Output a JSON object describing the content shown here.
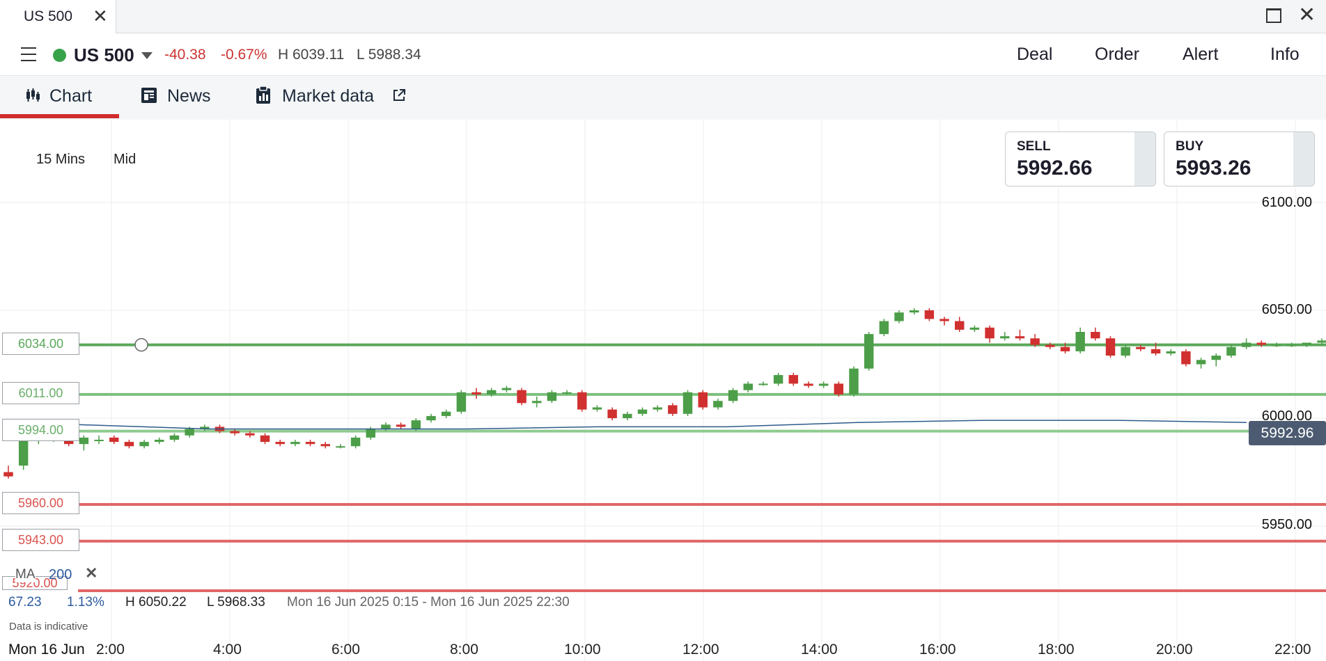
{
  "window": {
    "tab_title": "US 500"
  },
  "header": {
    "instrument": "US 500",
    "change": "-40.38",
    "change_pct": "-0.67%",
    "high": "H 6039.11",
    "low": "L 5988.34",
    "actions": [
      "Deal",
      "Order",
      "Alert",
      "Info"
    ]
  },
  "tabs": [
    {
      "label": "Chart",
      "icon": "candlestick-icon"
    },
    {
      "label": "News",
      "icon": "news-icon"
    },
    {
      "label": "Market data",
      "icon": "clipboard-icon"
    }
  ],
  "toolbar": {
    "timeframe": "15 Mins",
    "price_type": "Mid"
  },
  "quote": {
    "sell_label": "SELL",
    "sell_price": "5992.66",
    "buy_label": "BUY",
    "buy_price": "5993.26"
  },
  "y_axis": [
    "6100.00",
    "6050.00",
    "6000.00",
    "5950.00"
  ],
  "current_price": "5992.96",
  "levels": [
    {
      "label": "6034.00",
      "value": 6034,
      "color": "#5aa85a"
    },
    {
      "label": "6011.00",
      "value": 6011,
      "color": "#7cbf7c"
    },
    {
      "label": "5994.00",
      "value": 5994,
      "color": "#8fca8f"
    },
    {
      "label": "5960.00",
      "value": 5960,
      "color": "#e06666"
    },
    {
      "label": "5943.00",
      "value": 5943,
      "color": "#e06666"
    },
    {
      "label": "5920.00",
      "value": 5920,
      "color": "#e06666"
    }
  ],
  "indicator": {
    "name": "MA",
    "period": "200"
  },
  "stats": {
    "change": "67.23",
    "change_pct": "1.13%",
    "high": "H 6050.22",
    "low": "L 5968.33",
    "range": "Mon 16 Jun 2025 0:15 - Mon 16 Jun 2025 22:30"
  },
  "disclaimer": "Data is indicative",
  "x_axis": [
    "Mon 16 Jun",
    "2:00",
    "4:00",
    "6:00",
    "8:00",
    "10:00",
    "12:00",
    "14:00",
    "16:00",
    "18:00",
    "20:00",
    "22:00"
  ],
  "chart_data": {
    "type": "candlestick",
    "ylim": [
      5930,
      6105
    ],
    "colors": {
      "up": "#4c9e48",
      "down": "#d0302f",
      "ma": "#2c5a8a"
    },
    "ma_values": [
      5997,
      5995,
      5995,
      5995,
      5996,
      5996,
      5998,
      5999,
      5999,
      5998
    ],
    "candles": [
      [
        5975,
        5978,
        5972,
        5973
      ],
      [
        5978,
        5992,
        5976,
        5990
      ],
      [
        5990,
        5993,
        5988,
        5991
      ],
      [
        5991,
        5994,
        5989,
        5992
      ],
      [
        5993,
        5994,
        5987,
        5988
      ],
      [
        5988,
        5992,
        5985,
        5991
      ],
      [
        5990,
        5992,
        5988,
        5990
      ],
      [
        5991,
        5992,
        5988,
        5989
      ],
      [
        5989,
        5990,
        5986,
        5987
      ],
      [
        5987,
        5990,
        5986,
        5989
      ],
      [
        5989,
        5991,
        5988,
        5990
      ],
      [
        5990,
        5993,
        5989,
        5992
      ],
      [
        5992,
        5996,
        5991,
        5995
      ],
      [
        5995,
        5997,
        5994,
        5996
      ],
      [
        5996,
        5997,
        5993,
        5994
      ],
      [
        5994,
        5995,
        5992,
        5993
      ],
      [
        5993,
        5994,
        5991,
        5992
      ],
      [
        5992,
        5993,
        5988,
        5989
      ],
      [
        5989,
        5990,
        5987,
        5988
      ],
      [
        5988,
        5990,
        5987,
        5989
      ],
      [
        5989,
        5990,
        5987,
        5988
      ],
      [
        5988,
        5989,
        5986,
        5987
      ],
      [
        5987,
        5988,
        5986,
        5987
      ],
      [
        5987,
        5992,
        5986,
        5991
      ],
      [
        5991,
        5996,
        5990,
        5995
      ],
      [
        5995,
        5998,
        5994,
        5997
      ],
      [
        5997,
        5998,
        5995,
        5996
      ],
      [
        5995,
        6000,
        5994,
        5999
      ],
      [
        5999,
        6002,
        5998,
        6001
      ],
      [
        6001,
        6004,
        6000,
        6003
      ],
      [
        6003,
        6013,
        6002,
        6012
      ],
      [
        6012,
        6014,
        6009,
        6011
      ],
      [
        6011,
        6014,
        6010,
        6013
      ],
      [
        6013,
        6015,
        6012,
        6014
      ],
      [
        6013,
        6014,
        6006,
        6007
      ],
      [
        6007,
        6010,
        6005,
        6008
      ],
      [
        6008,
        6013,
        6007,
        6012
      ],
      [
        6012,
        6013,
        6011,
        6012
      ],
      [
        6012,
        6013,
        6003,
        6004
      ],
      [
        6004,
        6006,
        6003,
        6005
      ],
      [
        6004,
        6005,
        5999,
        6000
      ],
      [
        6000,
        6003,
        5999,
        6002
      ],
      [
        6002,
        6005,
        6001,
        6004
      ],
      [
        6004,
        6006,
        6003,
        6005
      ],
      [
        6006,
        6007,
        6001,
        6002
      ],
      [
        6002,
        6013,
        6001,
        6012
      ],
      [
        6012,
        6013,
        6004,
        6005
      ],
      [
        6005,
        6009,
        6004,
        6008
      ],
      [
        6008,
        6014,
        6007,
        6013
      ],
      [
        6013,
        6017,
        6012,
        6016
      ],
      [
        6016,
        6017,
        6015,
        6016
      ],
      [
        6016,
        6021,
        6015,
        6020
      ],
      [
        6020,
        6021,
        6015,
        6016
      ],
      [
        6016,
        6017,
        6014,
        6015
      ],
      [
        6015,
        6017,
        6014,
        6016
      ],
      [
        6016,
        6017,
        6010,
        6011
      ],
      [
        6011,
        6024,
        6010,
        6023
      ],
      [
        6023,
        6040,
        6022,
        6039
      ],
      [
        6039,
        6046,
        6038,
        6045
      ],
      [
        6045,
        6050,
        6044,
        6049
      ],
      [
        6049,
        6051,
        6048,
        6050
      ],
      [
        6050,
        6051,
        6045,
        6046
      ],
      [
        6046,
        6047,
        6043,
        6045
      ],
      [
        6045,
        6047,
        6040,
        6041
      ],
      [
        6041,
        6043,
        6040,
        6042
      ],
      [
        6042,
        6043,
        6035,
        6037
      ],
      [
        6037,
        6040,
        6036,
        6038
      ],
      [
        6038,
        6041,
        6036,
        6037
      ],
      [
        6037,
        6039,
        6033,
        6034
      ],
      [
        6034,
        6035,
        6032,
        6033
      ],
      [
        6033,
        6035,
        6030,
        6031
      ],
      [
        6031,
        6042,
        6030,
        6040
      ],
      [
        6040,
        6042,
        6036,
        6037
      ],
      [
        6037,
        6038,
        6028,
        6029
      ],
      [
        6029,
        6034,
        6028,
        6033
      ],
      [
        6033,
        6034,
        6031,
        6032
      ],
      [
        6032,
        6035,
        6029,
        6030
      ],
      [
        6030,
        6032,
        6029,
        6031
      ],
      [
        6031,
        6032,
        6024,
        6025
      ],
      [
        6025,
        6028,
        6023,
        6027
      ],
      [
        6027,
        6030,
        6024,
        6029
      ],
      [
        6029,
        6034,
        6028,
        6033
      ],
      [
        6033,
        6037,
        6032,
        6035
      ],
      [
        6035,
        6036,
        6033,
        6034
      ],
      [
        6034,
        6035,
        6033,
        6034
      ],
      [
        6034,
        6035,
        6033,
        6034
      ],
      [
        6034,
        6035,
        6033,
        6035
      ],
      [
        6035,
        6037,
        6034,
        6036
      ]
    ]
  }
}
